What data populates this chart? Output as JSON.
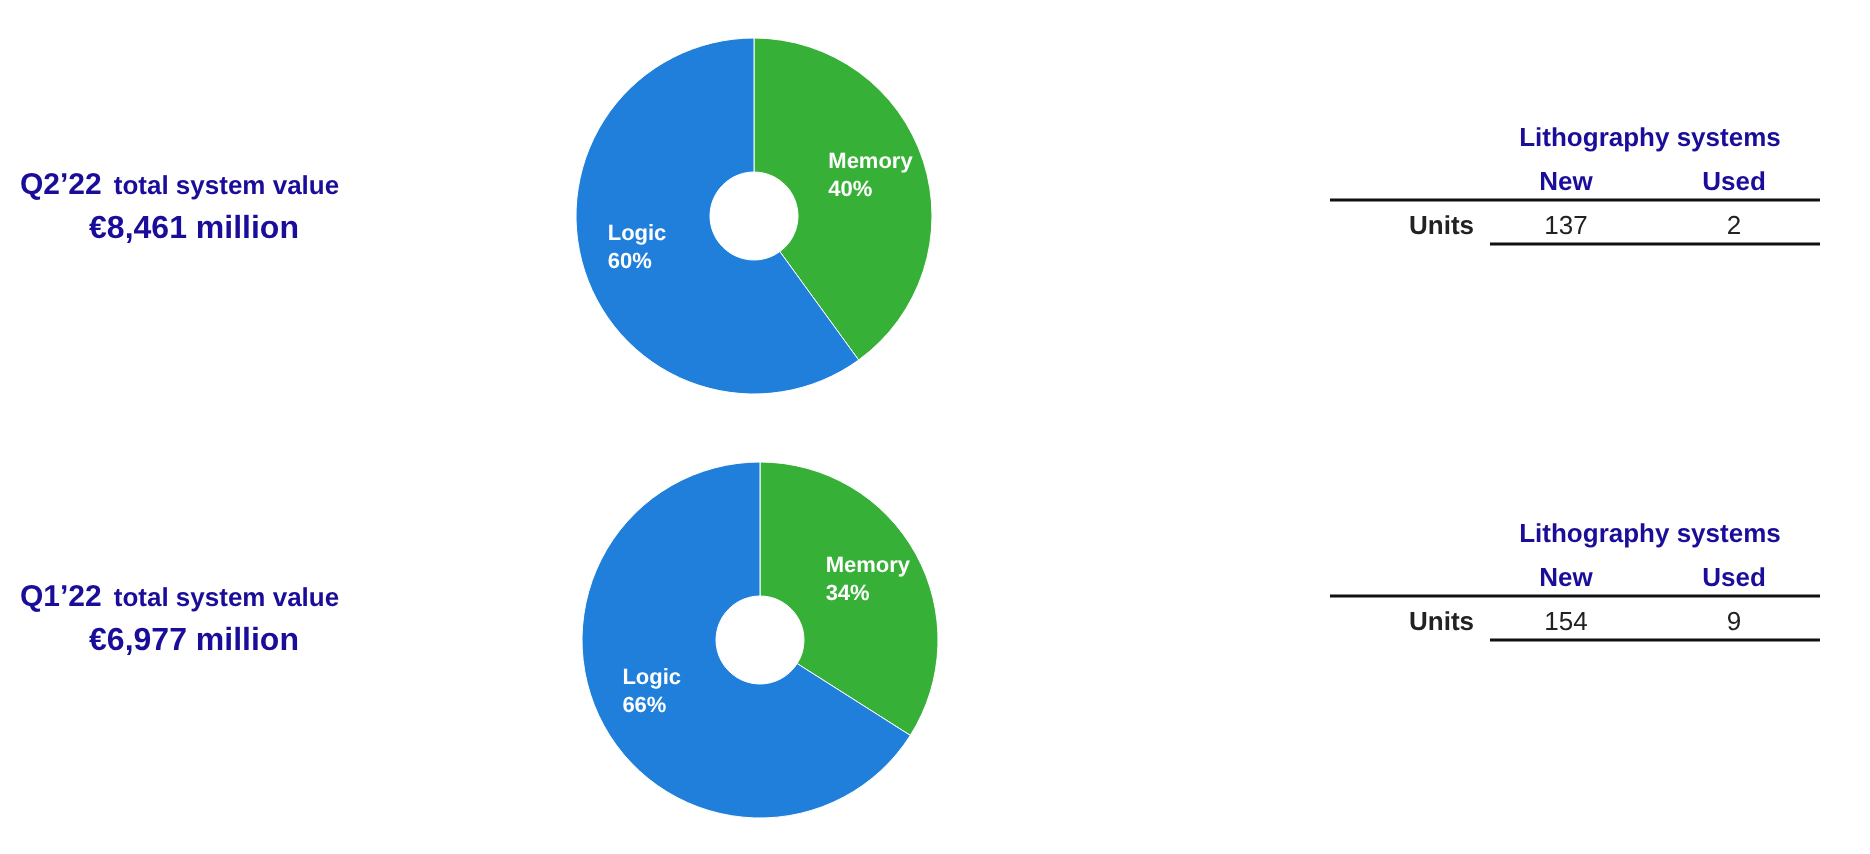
{
  "chart_data": [
    {
      "type": "donut",
      "title": "Q2’22 total system value",
      "subtitle": "€8,461 million",
      "categories": [
        "Memory",
        "Logic"
      ],
      "values": [
        40,
        60
      ],
      "colors": [
        "#36b037",
        "#1f7fdb"
      ],
      "value_labels": [
        "40%",
        "60%"
      ]
    },
    {
      "type": "other",
      "title": "Lithography systems",
      "categories": [
        "New",
        "Used"
      ],
      "y_categories": [
        "Units"
      ],
      "values": [
        137,
        2
      ],
      "data_labels": true
    },
    {
      "type": "donut",
      "title": "Q1’22 total system value",
      "subtitle": "€6,977 million",
      "categories": [
        "Memory",
        "Logic"
      ],
      "values": [
        34,
        66
      ],
      "colors": [
        "#36b037",
        "#1f7fdb"
      ],
      "value_labels": [
        "34%",
        "66%"
      ]
    },
    {
      "type": "other",
      "title": "Lithography systems",
      "categories": [
        "New",
        "Used"
      ],
      "y_categories": [
        "Units"
      ],
      "values": [
        154,
        9
      ],
      "data_labels": true
    }
  ]
}
